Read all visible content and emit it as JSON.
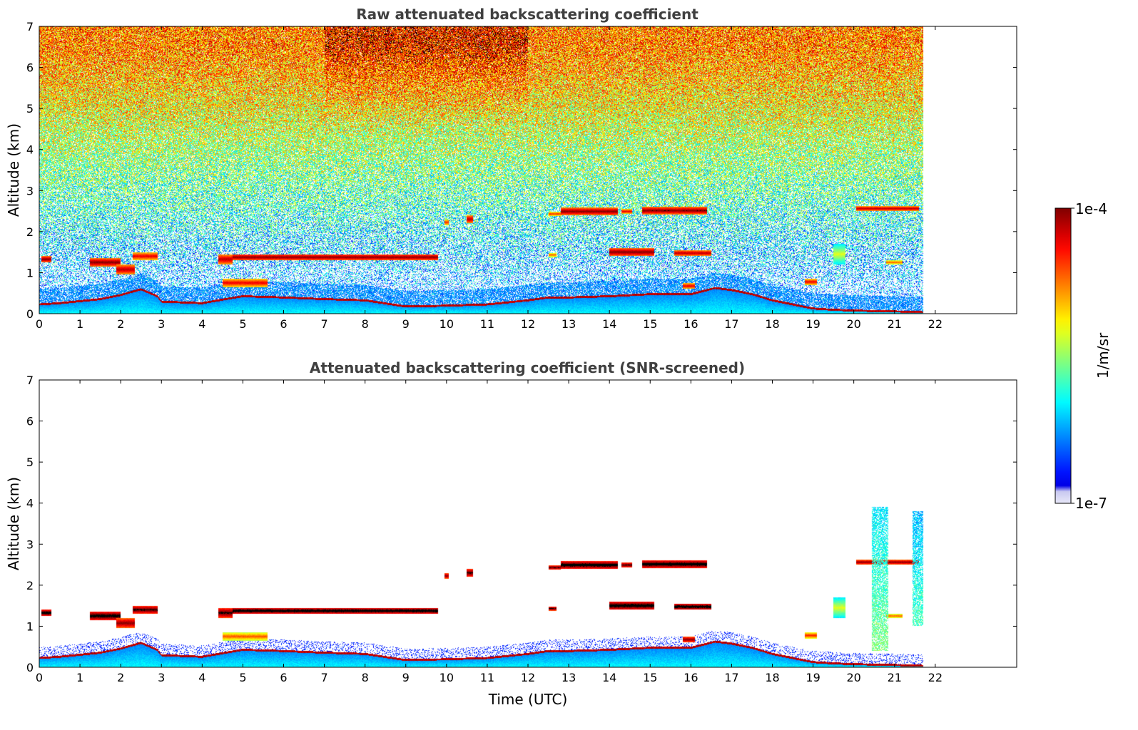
{
  "chart_data": [
    {
      "type": "heatmap",
      "title": "Raw attenuated backscattering coefficient",
      "xlabel": "",
      "ylabel": "Altitude (km)",
      "xlim": [
        0,
        24
      ],
      "ylim": [
        0,
        7
      ],
      "xticks": [
        "0",
        "1",
        "2",
        "3",
        "4",
        "5",
        "6",
        "7",
        "8",
        "9",
        "10",
        "11",
        "12",
        "13",
        "14",
        "15",
        "16",
        "17",
        "18",
        "19",
        "20",
        "21",
        "22"
      ],
      "yticks": [
        "0",
        "1",
        "2",
        "3",
        "4",
        "5",
        "6",
        "7"
      ],
      "data_end_time": 21.7,
      "noise": "high",
      "features": [
        {
          "kind": "cloud",
          "t0": 0.05,
          "t1": 0.3,
          "z0": 1.25,
          "z1": 1.4,
          "level": 1.0
        },
        {
          "kind": "cloud",
          "t0": 1.25,
          "t1": 2.0,
          "z0": 1.15,
          "z1": 1.35,
          "level": 1.0
        },
        {
          "kind": "cloud",
          "t0": 1.9,
          "t1": 2.35,
          "z0": 0.95,
          "z1": 1.2,
          "level": 0.95
        },
        {
          "kind": "cloud",
          "t0": 2.3,
          "t1": 2.9,
          "z0": 1.3,
          "z1": 1.5,
          "level": 0.9
        },
        {
          "kind": "cloud",
          "t0": 4.4,
          "t1": 4.75,
          "z0": 1.2,
          "z1": 1.45,
          "level": 0.95
        },
        {
          "kind": "cloud",
          "t0": 4.75,
          "t1": 9.8,
          "z0": 1.3,
          "z1": 1.45,
          "level": 1.0
        },
        {
          "kind": "cloud",
          "t0": 4.5,
          "t1": 5.6,
          "z0": 0.65,
          "z1": 0.85,
          "level": 0.9
        },
        {
          "kind": "cloud",
          "t0": 9.95,
          "t1": 10.05,
          "z0": 2.15,
          "z1": 2.3,
          "level": 0.85
        },
        {
          "kind": "cloud",
          "t0": 10.5,
          "t1": 10.65,
          "z0": 2.2,
          "z1": 2.4,
          "level": 0.95
        },
        {
          "kind": "cloud",
          "t0": 12.5,
          "t1": 12.8,
          "z0": 2.38,
          "z1": 2.48,
          "level": 0.85
        },
        {
          "kind": "cloud",
          "t0": 12.8,
          "t1": 14.2,
          "z0": 2.4,
          "z1": 2.58,
          "level": 1.0
        },
        {
          "kind": "cloud",
          "t0": 14.3,
          "t1": 14.55,
          "z0": 2.43,
          "z1": 2.55,
          "level": 0.9
        },
        {
          "kind": "cloud",
          "t0": 14.8,
          "t1": 16.4,
          "z0": 2.42,
          "z1": 2.6,
          "level": 1.0
        },
        {
          "kind": "cloud",
          "t0": 12.5,
          "t1": 12.7,
          "z0": 1.38,
          "z1": 1.48,
          "level": 0.8
        },
        {
          "kind": "cloud",
          "t0": 14.0,
          "t1": 15.1,
          "z0": 1.4,
          "z1": 1.6,
          "level": 1.0
        },
        {
          "kind": "cloud",
          "t0": 15.6,
          "t1": 16.5,
          "z0": 1.4,
          "z1": 1.55,
          "level": 0.95
        },
        {
          "kind": "cloud",
          "t0": 20.05,
          "t1": 21.6,
          "z0": 2.5,
          "z1": 2.62,
          "level": 0.95
        },
        {
          "kind": "cloud",
          "t0": 20.8,
          "t1": 21.2,
          "z0": 1.2,
          "z1": 1.3,
          "level": 0.8
        },
        {
          "kind": "cloud",
          "t0": 19.5,
          "t1": 19.8,
          "z0": 1.2,
          "z1": 1.7,
          "level": 0.6
        },
        {
          "kind": "cloud",
          "t0": 18.8,
          "t1": 19.1,
          "z0": 0.7,
          "z1": 0.85,
          "level": 0.9
        },
        {
          "kind": "cloud",
          "t0": 15.8,
          "t1": 16.1,
          "z0": 0.6,
          "z1": 0.75,
          "level": 0.9
        }
      ],
      "pbl_top": [
        [
          0,
          0.25
        ],
        [
          0.5,
          0.28
        ],
        [
          1.0,
          0.33
        ],
        [
          1.5,
          0.38
        ],
        [
          2.0,
          0.48
        ],
        [
          2.5,
          0.62
        ],
        [
          2.9,
          0.45
        ],
        [
          3.0,
          0.32
        ],
        [
          3.5,
          0.3
        ],
        [
          4.0,
          0.28
        ],
        [
          4.4,
          0.35
        ],
        [
          5.0,
          0.45
        ],
        [
          6.0,
          0.42
        ],
        [
          7.0,
          0.38
        ],
        [
          8.0,
          0.35
        ],
        [
          9.0,
          0.2
        ],
        [
          10.0,
          0.22
        ],
        [
          11.0,
          0.25
        ],
        [
          12.0,
          0.35
        ],
        [
          12.5,
          0.42
        ],
        [
          13.0,
          0.42
        ],
        [
          14.0,
          0.45
        ],
        [
          15.0,
          0.5
        ],
        [
          16.0,
          0.5
        ],
        [
          16.6,
          0.65
        ],
        [
          17.0,
          0.6
        ],
        [
          17.5,
          0.5
        ],
        [
          18.0,
          0.35
        ],
        [
          18.5,
          0.25
        ],
        [
          19.0,
          0.15
        ],
        [
          19.5,
          0.12
        ],
        [
          20.0,
          0.1
        ],
        [
          21.0,
          0.08
        ],
        [
          21.7,
          0.06
        ]
      ]
    },
    {
      "type": "heatmap",
      "title": "Attenuated backscattering coefficient (SNR-screened)",
      "xlabel": "Time (UTC)",
      "ylabel": "Altitude (km)",
      "xlim": [
        0,
        24
      ],
      "ylim": [
        0,
        7
      ],
      "xticks": [
        "0",
        "1",
        "2",
        "3",
        "4",
        "5",
        "6",
        "7",
        "8",
        "9",
        "10",
        "11",
        "12",
        "13",
        "14",
        "15",
        "16",
        "17",
        "18",
        "19",
        "20",
        "21",
        "22"
      ],
      "yticks": [
        "0",
        "1",
        "2",
        "3",
        "4",
        "5",
        "6",
        "7"
      ],
      "data_end_time": 21.7,
      "noise": "screened",
      "features": [
        {
          "kind": "cloud",
          "t0": 0.05,
          "t1": 0.3,
          "z0": 1.25,
          "z1": 1.4,
          "level": 1.1
        },
        {
          "kind": "cloud",
          "t0": 1.25,
          "t1": 2.0,
          "z0": 1.15,
          "z1": 1.35,
          "level": 1.1
        },
        {
          "kind": "cloud",
          "t0": 1.9,
          "t1": 2.35,
          "z0": 0.95,
          "z1": 1.2,
          "level": 1.0
        },
        {
          "kind": "cloud",
          "t0": 2.3,
          "t1": 2.9,
          "z0": 1.3,
          "z1": 1.5,
          "level": 1.05
        },
        {
          "kind": "cloud",
          "t0": 4.4,
          "t1": 4.75,
          "z0": 1.2,
          "z1": 1.45,
          "level": 1.05
        },
        {
          "kind": "cloud",
          "t0": 4.75,
          "t1": 9.8,
          "z0": 1.3,
          "z1": 1.45,
          "level": 1.1
        },
        {
          "kind": "cloud",
          "t0": 4.5,
          "t1": 5.6,
          "z0": 0.65,
          "z1": 0.85,
          "level": 0.8
        },
        {
          "kind": "cloud",
          "t0": 9.95,
          "t1": 10.05,
          "z0": 2.15,
          "z1": 2.3,
          "level": 1.0
        },
        {
          "kind": "cloud",
          "t0": 10.5,
          "t1": 10.65,
          "z0": 2.2,
          "z1": 2.4,
          "level": 1.05
        },
        {
          "kind": "cloud",
          "t0": 12.5,
          "t1": 12.8,
          "z0": 2.38,
          "z1": 2.48,
          "level": 1.05
        },
        {
          "kind": "cloud",
          "t0": 12.8,
          "t1": 14.2,
          "z0": 2.4,
          "z1": 2.58,
          "level": 1.1
        },
        {
          "kind": "cloud",
          "t0": 14.3,
          "t1": 14.55,
          "z0": 2.43,
          "z1": 2.55,
          "level": 1.05
        },
        {
          "kind": "cloud",
          "t0": 14.8,
          "t1": 16.4,
          "z0": 2.42,
          "z1": 2.6,
          "level": 1.1
        },
        {
          "kind": "cloud",
          "t0": 12.5,
          "t1": 12.7,
          "z0": 1.38,
          "z1": 1.48,
          "level": 1.05
        },
        {
          "kind": "cloud",
          "t0": 14.0,
          "t1": 15.1,
          "z0": 1.4,
          "z1": 1.6,
          "level": 1.1
        },
        {
          "kind": "cloud",
          "t0": 15.6,
          "t1": 16.5,
          "z0": 1.4,
          "z1": 1.55,
          "level": 1.1
        },
        {
          "kind": "cloud",
          "t0": 20.05,
          "t1": 21.6,
          "z0": 2.5,
          "z1": 2.62,
          "level": 1.0
        },
        {
          "kind": "cloud",
          "t0": 20.8,
          "t1": 21.2,
          "z0": 1.2,
          "z1": 1.3,
          "level": 0.8
        },
        {
          "kind": "cloud",
          "t0": 19.5,
          "t1": 19.8,
          "z0": 1.2,
          "z1": 1.7,
          "level": 0.6
        },
        {
          "kind": "cloud",
          "t0": 18.8,
          "t1": 19.1,
          "z0": 0.7,
          "z1": 0.85,
          "level": 0.85
        },
        {
          "kind": "cloud",
          "t0": 15.8,
          "t1": 16.1,
          "z0": 0.6,
          "z1": 0.75,
          "level": 1.0
        },
        {
          "kind": "plume",
          "t0": 20.45,
          "t1": 20.85,
          "z0": 0.4,
          "z1": 3.9,
          "level": 0.5
        },
        {
          "kind": "plume",
          "t0": 21.45,
          "t1": 21.7,
          "z0": 1.0,
          "z1": 3.8,
          "level": 0.45
        }
      ],
      "pbl_top": [
        [
          0,
          0.25
        ],
        [
          0.5,
          0.28
        ],
        [
          1.0,
          0.33
        ],
        [
          1.5,
          0.38
        ],
        [
          2.0,
          0.48
        ],
        [
          2.5,
          0.62
        ],
        [
          2.9,
          0.45
        ],
        [
          3.0,
          0.32
        ],
        [
          3.5,
          0.3
        ],
        [
          4.0,
          0.28
        ],
        [
          4.4,
          0.35
        ],
        [
          5.0,
          0.45
        ],
        [
          6.0,
          0.42
        ],
        [
          7.0,
          0.38
        ],
        [
          8.0,
          0.35
        ],
        [
          9.0,
          0.2
        ],
        [
          10.0,
          0.22
        ],
        [
          11.0,
          0.25
        ],
        [
          12.0,
          0.35
        ],
        [
          12.5,
          0.42
        ],
        [
          13.0,
          0.42
        ],
        [
          14.0,
          0.45
        ],
        [
          15.0,
          0.5
        ],
        [
          16.0,
          0.5
        ],
        [
          16.6,
          0.65
        ],
        [
          17.0,
          0.6
        ],
        [
          17.5,
          0.5
        ],
        [
          18.0,
          0.35
        ],
        [
          18.5,
          0.25
        ],
        [
          19.0,
          0.15
        ],
        [
          19.5,
          0.12
        ],
        [
          20.0,
          0.1
        ],
        [
          21.0,
          0.08
        ],
        [
          21.7,
          0.06
        ]
      ]
    }
  ],
  "colorbar": {
    "label": "1/m/sr",
    "min_label": "1e-7",
    "max_label": "1e-4",
    "colormap": "jet",
    "low_color": "#e8e8f8",
    "high_color": "#800000"
  }
}
